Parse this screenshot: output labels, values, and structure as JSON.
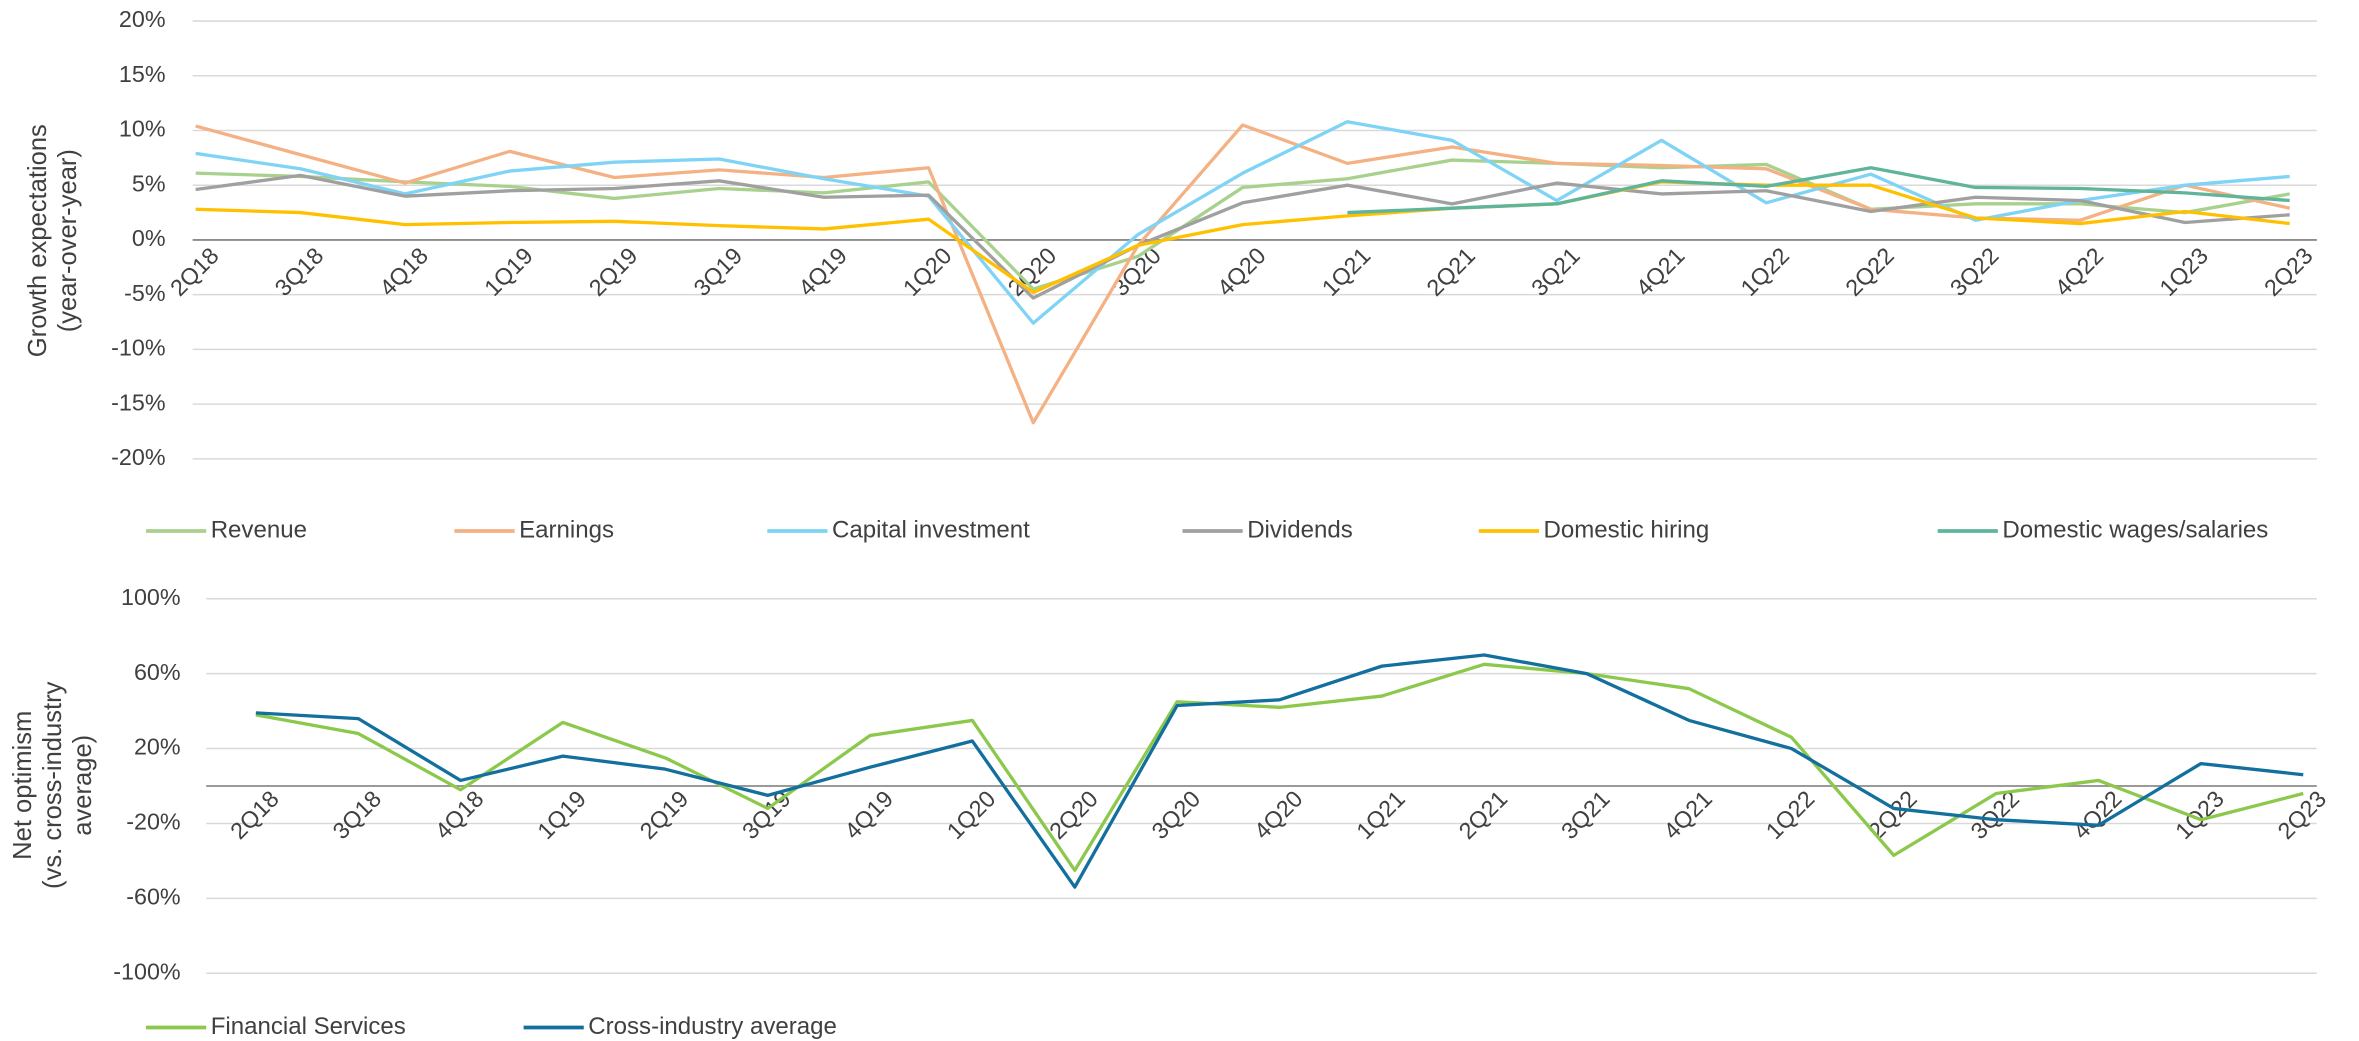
{
  "chart_data": [
    {
      "type": "line",
      "ylabel": [
        "Growth expectations",
        "(year-over-year)"
      ],
      "categories": [
        "2Q18",
        "3Q18",
        "4Q18",
        "1Q19",
        "2Q19",
        "3Q19",
        "4Q19",
        "1Q20",
        "2Q20",
        "3Q20",
        "4Q20",
        "1Q21",
        "2Q21",
        "3Q21",
        "4Q21",
        "1Q22",
        "2Q22",
        "3Q22",
        "4Q22",
        "1Q23",
        "2Q23"
      ],
      "ylim": [
        -20,
        20
      ],
      "yticks": [
        {
          "value": 20,
          "label": "20%"
        },
        {
          "value": 15,
          "label": "15%"
        },
        {
          "value": 10,
          "label": "10%"
        },
        {
          "value": 5,
          "label": "5%"
        },
        {
          "value": 0,
          "label": "0%"
        },
        {
          "value": -5,
          "label": "-5%"
        },
        {
          "value": -10,
          "label": "-10%"
        },
        {
          "value": -15,
          "label": "-15%"
        },
        {
          "value": -20,
          "label": "-20%"
        }
      ],
      "grid": true,
      "series": [
        {
          "name": "Revenue",
          "color": "#a9d18e",
          "values": [
            6.1,
            5.8,
            5.3,
            4.9,
            3.8,
            4.7,
            4.3,
            5.3,
            -4.5,
            -1.5,
            4.8,
            5.6,
            7.3,
            7.0,
            6.6,
            6.9,
            2.8,
            3.3,
            3.3,
            2.5,
            4.2
          ]
        },
        {
          "name": "Earnings",
          "color": "#f4b183",
          "values": [
            10.4,
            7.8,
            5.2,
            8.1,
            5.7,
            6.4,
            5.7,
            6.6,
            -16.7,
            -0.5,
            10.5,
            7.0,
            8.5,
            7.0,
            6.8,
            6.5,
            2.8,
            2.0,
            1.8,
            5.0,
            2.9
          ]
        },
        {
          "name": "Capital investment",
          "color": "#7fd3f5",
          "values": [
            7.9,
            6.5,
            4.2,
            6.3,
            7.1,
            7.4,
            5.6,
            4.0,
            -7.6,
            0.5,
            6.1,
            10.8,
            9.1,
            3.6,
            9.1,
            3.4,
            6.0,
            1.8,
            3.6,
            5.0,
            5.8
          ]
        },
        {
          "name": "Dividends",
          "color": "#a0a0a0",
          "values": [
            4.6,
            5.9,
            4.0,
            4.5,
            4.7,
            5.4,
            3.9,
            4.1,
            -5.3,
            -0.5,
            3.4,
            5.0,
            3.3,
            5.2,
            4.2,
            4.5,
            2.6,
            3.9,
            3.6,
            1.6,
            2.3
          ]
        },
        {
          "name": "Domestic hiring",
          "color": "#ffc000",
          "values": [
            2.8,
            2.5,
            1.4,
            1.6,
            1.7,
            1.3,
            1.0,
            1.9,
            -4.8,
            -0.5,
            1.4,
            2.2,
            2.9,
            3.3,
            5.3,
            5.0,
            5.0,
            2.0,
            1.5,
            2.6,
            1.5
          ]
        },
        {
          "name": "Domestic wages/salaries",
          "color": "#5fb49c",
          "values": [
            null,
            null,
            null,
            null,
            null,
            null,
            null,
            null,
            null,
            null,
            null,
            2.5,
            2.9,
            3.3,
            5.4,
            4.9,
            6.6,
            4.8,
            4.7,
            4.3,
            3.6
          ]
        }
      ]
    },
    {
      "type": "line",
      "ylabel": [
        "Net optimism",
        "(vs. cross-industry",
        "average)"
      ],
      "categories": [
        "2Q18",
        "3Q18",
        "4Q18",
        "1Q19",
        "2Q19",
        "3Q19",
        "4Q19",
        "1Q20",
        "2Q20",
        "3Q20",
        "4Q20",
        "1Q21",
        "2Q21",
        "3Q21",
        "4Q21",
        "1Q22",
        "2Q22",
        "3Q22",
        "4Q22",
        "1Q23",
        "2Q23"
      ],
      "ylim": [
        -100,
        100
      ],
      "yticks": [
        {
          "value": 100,
          "label": "100%"
        },
        {
          "value": 60,
          "label": "60%"
        },
        {
          "value": 20,
          "label": "20%"
        },
        {
          "value": -20,
          "label": "-20%"
        },
        {
          "value": -60,
          "label": "-60%"
        },
        {
          "value": -100,
          "label": "-100%"
        }
      ],
      "grid": true,
      "series": [
        {
          "name": "Financial Services",
          "color": "#8cc84b",
          "values": [
            38,
            28,
            -2,
            34,
            15,
            -12,
            27,
            35,
            -45,
            45,
            42,
            48,
            65,
            60,
            52,
            26,
            -37,
            -4,
            3,
            -18,
            -4
          ]
        },
        {
          "name": "Cross-industry average",
          "color": "#136f9e",
          "values": [
            39,
            36,
            3,
            16,
            9,
            -5,
            10,
            24,
            -54,
            43,
            46,
            64,
            70,
            60,
            35,
            20,
            -12,
            -18,
            -21,
            12,
            6
          ]
        }
      ]
    }
  ]
}
